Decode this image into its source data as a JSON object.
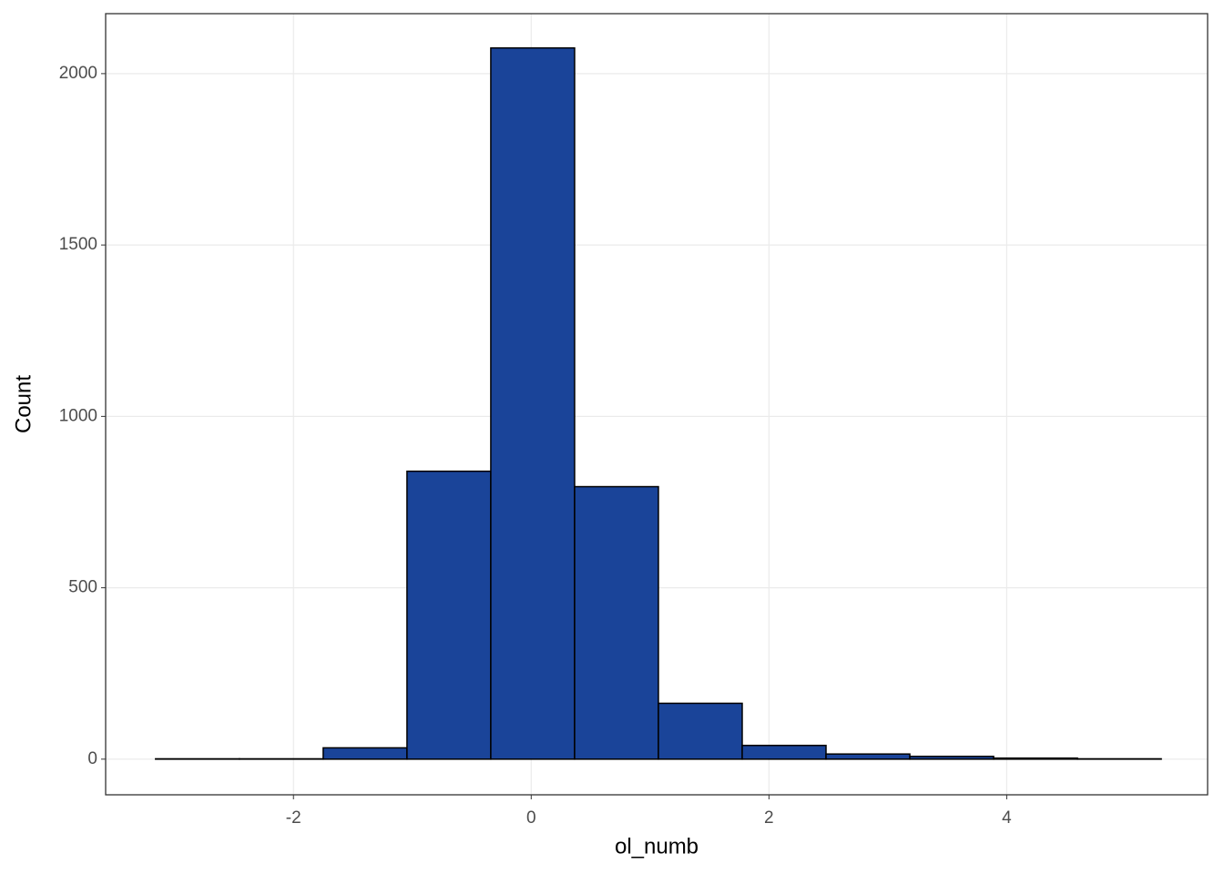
{
  "chart_data": {
    "type": "histogram",
    "x_label": "ol_numb",
    "y_label": "Count",
    "bins": [
      -3.16,
      -2.455,
      -1.75,
      -1.045,
      -0.34,
      0.365,
      1.07,
      1.775,
      2.48,
      3.185,
      3.89,
      4.595,
      5.3
    ],
    "counts": [
      1,
      1,
      33,
      840,
      2075,
      795,
      163,
      40,
      15,
      8,
      3,
      1
    ],
    "color": "#1a4499",
    "xlim": [
      -3.58,
      5.69
    ],
    "xticks": [
      -2,
      0,
      2,
      4
    ],
    "ylim": [
      -104,
      2175
    ],
    "yticks": [
      0,
      500,
      1000,
      1500,
      2000
    ],
    "grid": true
  }
}
